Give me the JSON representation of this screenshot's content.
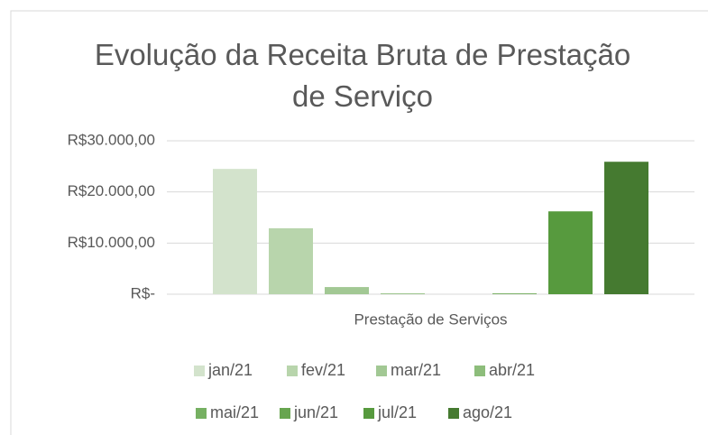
{
  "chart_data": {
    "type": "bar",
    "title": "Evolução da Receita Bruta de Prestação de Serviço",
    "categories": [
      "Prestação de Serviços"
    ],
    "series": [
      {
        "name": "jan/21",
        "color": "#d3e3cc",
        "values": [
          24500
        ]
      },
      {
        "name": "fev/21",
        "color": "#b8d5ac",
        "values": [
          12900
        ]
      },
      {
        "name": "mar/21",
        "color": "#a2c894",
        "values": [
          1400
        ]
      },
      {
        "name": "abr/21",
        "color": "#8dbd7b",
        "values": [
          150
        ]
      },
      {
        "name": "mai/21",
        "color": "#76b062",
        "values": [
          0
        ]
      },
      {
        "name": "jun/21",
        "color": "#67a54f",
        "values": [
          150
        ]
      },
      {
        "name": "jul/21",
        "color": "#579a3e",
        "values": [
          16200
        ]
      },
      {
        "name": "ago/21",
        "color": "#457a30",
        "values": [
          25900
        ]
      }
    ],
    "ylim": [
      0,
      30000
    ],
    "yticks": [
      {
        "value": 0,
        "label": "R$-"
      },
      {
        "value": 10000,
        "label": "R$10.000,00"
      },
      {
        "value": 20000,
        "label": "R$20.000,00"
      },
      {
        "value": 30000,
        "label": "R$30.000,00"
      }
    ],
    "grid": true,
    "legend": "bottom"
  }
}
